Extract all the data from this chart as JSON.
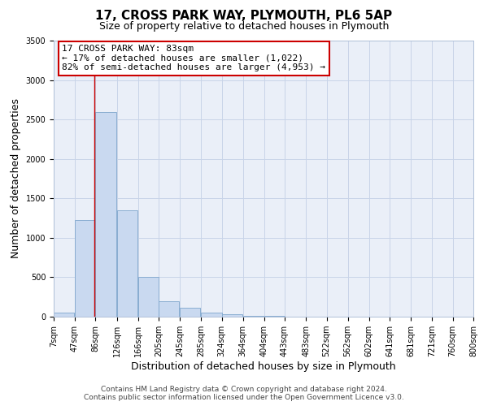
{
  "title": "17, CROSS PARK WAY, PLYMOUTH, PL6 5AP",
  "subtitle": "Size of property relative to detached houses in Plymouth",
  "xlabel": "Distribution of detached houses by size in Plymouth",
  "ylabel": "Number of detached properties",
  "footer_line1": "Contains HM Land Registry data © Crown copyright and database right 2024.",
  "footer_line2": "Contains public sector information licensed under the Open Government Licence v3.0.",
  "annotation_line1": "17 CROSS PARK WAY: 83sqm",
  "annotation_line2": "← 17% of detached houses are smaller (1,022)",
  "annotation_line3": "82% of semi-detached houses are larger (4,953) →",
  "bar_left_edges": [
    7,
    47,
    86,
    126,
    166,
    205,
    245,
    285,
    324,
    364,
    404,
    443,
    483,
    522,
    562,
    602,
    641,
    681,
    721,
    760
  ],
  "bar_heights": [
    50,
    1230,
    2590,
    1350,
    500,
    200,
    110,
    50,
    30,
    15,
    10,
    5,
    3,
    2,
    1,
    1,
    0,
    0,
    0,
    0
  ],
  "bin_width": 39,
  "tick_labels": [
    "7sqm",
    "47sqm",
    "86sqm",
    "126sqm",
    "166sqm",
    "205sqm",
    "245sqm",
    "285sqm",
    "324sqm",
    "364sqm",
    "404sqm",
    "443sqm",
    "483sqm",
    "522sqm",
    "562sqm",
    "602sqm",
    "641sqm",
    "681sqm",
    "721sqm",
    "760sqm",
    "800sqm"
  ],
  "property_line_x": 83,
  "ylim": [
    0,
    3500
  ],
  "yticks": [
    0,
    500,
    1000,
    1500,
    2000,
    2500,
    3000,
    3500
  ],
  "bar_color": "#c9d9f0",
  "bar_edge_color": "#7ea6cc",
  "property_line_color": "#cc0000",
  "annotation_box_edge_color": "#cc0000",
  "annotation_box_face_color": "#ffffff",
  "grid_color": "#c8d4e8",
  "background_color": "#eaeff8",
  "title_fontsize": 11,
  "subtitle_fontsize": 9,
  "axis_label_fontsize": 9,
  "tick_fontsize": 7,
  "annotation_fontsize": 8,
  "footer_fontsize": 6.5
}
